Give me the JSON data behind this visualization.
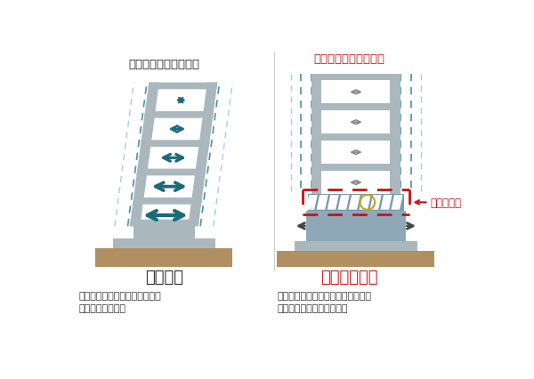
{
  "bg_color": "#ffffff",
  "title_left": "耐震構造",
  "title_right": "中間免震構造",
  "subtitle_left": "上階ほど激しく揺れる",
  "subtitle_right": "全体がゆっくり揺れる",
  "desc_left": "大地震時には建物は変形し被害\nが発生しやすい。",
  "desc_right": "建物の被害はもとより、室内の物品\n転倒の被害も抑制できる。",
  "label_right": "中間免震層",
  "building_color": "#aab8be",
  "floor_color": "#ffffff",
  "ground_color": "#b09060",
  "ground_light": "#c8aa78",
  "arrow_color_left": "#1a6b7a",
  "arrow_color_right": "#888888",
  "dashed_color_inner": "#4a90a8",
  "dashed_color_outer": "#aaccdd",
  "red_dashed": "#cc1111",
  "isolation_fill": "#7a9aaa",
  "lower_block_color": "#8ea8b8",
  "circle_color": "#c8a020",
  "arrow_side_color": "#444444"
}
